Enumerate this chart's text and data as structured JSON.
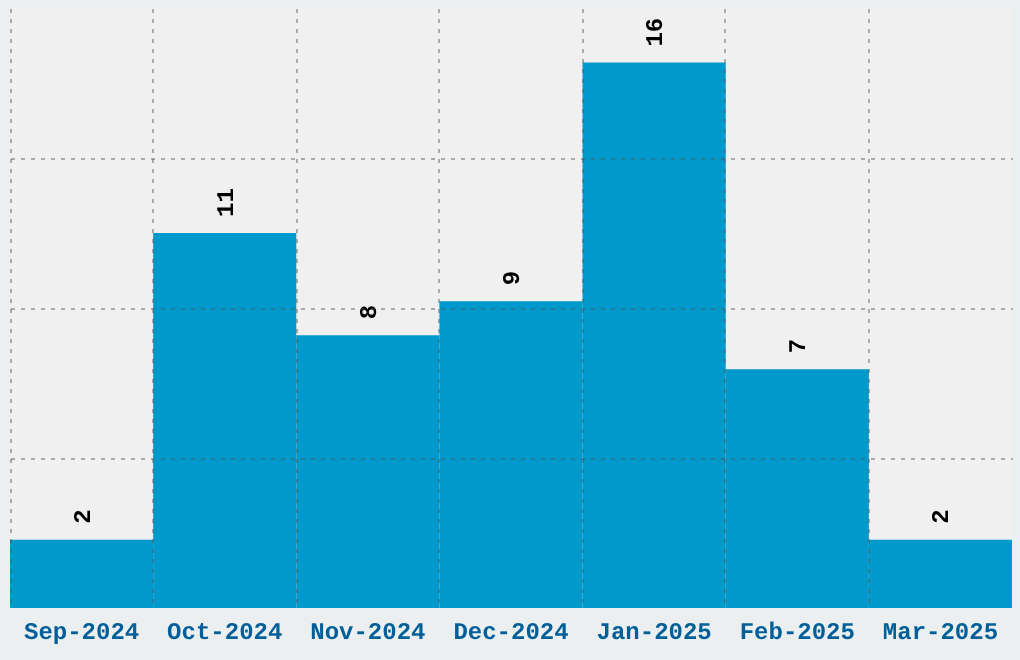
{
  "chart_data": {
    "type": "bar",
    "categories": [
      "Sep-2024",
      "Oct-2024",
      "Nov-2024",
      "Dec-2024",
      "Jan-2025",
      "Feb-2025",
      "Mar-2025"
    ],
    "values": [
      2,
      11,
      8,
      9,
      16,
      7,
      2
    ],
    "color": "#0099cc",
    "ylim": [
      0,
      17.6
    ],
    "yticks": [
      {
        "value": 4.4,
        "label": null
      },
      {
        "value": 8.8,
        "label": null
      },
      {
        "value": 13.2,
        "label": null
      }
    ],
    "tick_labels": "x",
    "grid": true,
    "data_labels": true
  }
}
